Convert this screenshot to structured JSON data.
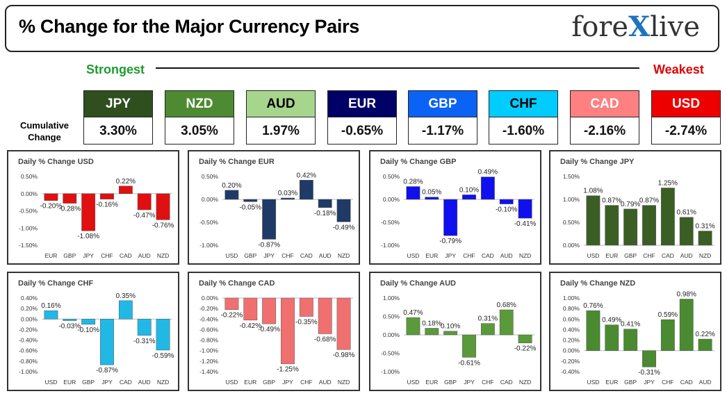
{
  "header": {
    "title": "% Change for the Major Currency Pairs",
    "logo_text_pre": "fore",
    "logo_text_x": "X",
    "logo_text_post": "live"
  },
  "scale": {
    "strongest_label": "Strongest",
    "weakest_label": "Weakest",
    "cumulative_label_line1": "Cumulative",
    "cumulative_label_line2": "Change"
  },
  "currencies": [
    {
      "code": "JPY",
      "value": "3.30%",
      "bg": "#2f4f1f",
      "fg": "#ffffff"
    },
    {
      "code": "NZD",
      "value": "3.05%",
      "bg": "#4e8a32",
      "fg": "#ffffff"
    },
    {
      "code": "AUD",
      "value": "1.97%",
      "bg": "#a6d58c",
      "fg": "#000000"
    },
    {
      "code": "EUR",
      "value": "-0.65%",
      "bg": "#000066",
      "fg": "#ffffff"
    },
    {
      "code": "GBP",
      "value": "-1.17%",
      "bg": "#0b63f5",
      "fg": "#ffffff"
    },
    {
      "code": "CHF",
      "value": "-1.60%",
      "bg": "#00ccff",
      "fg": "#000000"
    },
    {
      "code": "CAD",
      "value": "-2.16%",
      "bg": "#ff8080",
      "fg": "#ffffff"
    },
    {
      "code": "USD",
      "value": "-2.74%",
      "bg": "#ee0000",
      "fg": "#ffffff"
    }
  ],
  "chart_data": [
    {
      "type": "bar",
      "title": "Daily % Change USD",
      "color": "#e01010",
      "categories": [
        "EUR",
        "GBP",
        "JPY",
        "CHF",
        "CAD",
        "AUD",
        "NZD"
      ],
      "values": [
        -0.2,
        -0.28,
        -1.08,
        -0.16,
        0.22,
        -0.47,
        -0.76
      ],
      "labels": [
        "-0.20%",
        "-0.28%",
        "-1.08%",
        "-0.16%",
        "0.22%",
        "-0.47%",
        "-0.76%"
      ],
      "yticks": [
        "0.50%",
        "0.00%",
        "-0.50%",
        "-1.00%",
        "-1.50%"
      ],
      "ylim": [
        -1.5,
        0.5
      ]
    },
    {
      "type": "bar",
      "title": "Daily % Change EUR",
      "color": "#1f3a66",
      "categories": [
        "USD",
        "GBP",
        "JPY",
        "CHF",
        "CAD",
        "AUD",
        "NZD"
      ],
      "values": [
        0.2,
        -0.05,
        -0.87,
        0.03,
        0.42,
        -0.18,
        -0.49
      ],
      "labels": [
        "0.20%",
        "-0.05%",
        "-0.87%",
        "0.03%",
        "0.42%",
        "-0.18%",
        "-0.49%"
      ],
      "yticks": [
        "0.50%",
        "0.00%",
        "-0.50%",
        "-1.00%"
      ],
      "ylim": [
        -1.0,
        0.5
      ]
    },
    {
      "type": "bar",
      "title": "Daily % Change GBP",
      "color": "#1010ee",
      "categories": [
        "USD",
        "EUR",
        "JPY",
        "CHF",
        "CAD",
        "AUD",
        "NZD"
      ],
      "values": [
        0.28,
        0.05,
        -0.79,
        0.1,
        0.49,
        -0.1,
        -0.41
      ],
      "labels": [
        "0.28%",
        "0.05%",
        "-0.79%",
        "0.10%",
        "0.49%",
        "-0.10%",
        "-0.41%"
      ],
      "yticks": [
        "0.50%",
        "0.00%",
        "-0.50%",
        "-1.00%"
      ],
      "ylim": [
        -1.0,
        0.5
      ]
    },
    {
      "type": "bar",
      "title": "Daily % Change JPY",
      "color": "#3a5e24",
      "categories": [
        "USD",
        "EUR",
        "GBP",
        "CHF",
        "CAD",
        "AUD",
        "NZD"
      ],
      "values": [
        1.08,
        0.87,
        0.79,
        0.87,
        1.25,
        0.61,
        0.31
      ],
      "labels": [
        "1.08%",
        "0.87%",
        "0.79%",
        "0.87%",
        "1.25%",
        "0.61%",
        "0.31%"
      ],
      "yticks": [
        "1.50%",
        "1.00%",
        "0.50%",
        "0.00%"
      ],
      "ylim": [
        0,
        1.5
      ]
    },
    {
      "type": "bar",
      "title": "Daily % Change CHF",
      "color": "#22b8e6",
      "categories": [
        "USD",
        "EUR",
        "GBP",
        "JPY",
        "CAD",
        "AUD",
        "NZD"
      ],
      "values": [
        0.16,
        -0.03,
        -0.1,
        -0.87,
        0.35,
        -0.31,
        -0.59
      ],
      "labels": [
        "0.16%",
        "-0.03%",
        "-0.10%",
        "-0.87%",
        "0.35%",
        "-0.31%",
        "-0.59%"
      ],
      "yticks": [
        "0.40%",
        "0.20%",
        "0.00%",
        "-0.20%",
        "-0.40%",
        "-0.60%",
        "-0.80%",
        "-1.00%"
      ],
      "ylim": [
        -1.0,
        0.4
      ]
    },
    {
      "type": "bar",
      "title": "Daily % Change CAD",
      "color": "#f07070",
      "categories": [
        "USD",
        "EUR",
        "GBP",
        "JPY",
        "CHF",
        "AUD",
        "NZD"
      ],
      "values": [
        -0.22,
        -0.42,
        -0.49,
        -1.25,
        -0.35,
        -0.68,
        -0.98
      ],
      "labels": [
        "-0.22%",
        "-0.42%",
        "-0.49%",
        "-1.25%",
        "-0.35%",
        "-0.68%",
        "-0.98%"
      ],
      "yticks": [
        "0.00%",
        "-0.20%",
        "-0.40%",
        "-0.60%",
        "-0.80%",
        "-1.00%",
        "-1.20%",
        "-1.40%"
      ],
      "ylim": [
        -1.4,
        0
      ]
    },
    {
      "type": "bar",
      "title": "Daily % Change AUD",
      "color": "#5a9a3a",
      "categories": [
        "USD",
        "EUR",
        "GBP",
        "JPY",
        "CHF",
        "CAD",
        "NZD"
      ],
      "values": [
        0.47,
        0.18,
        0.1,
        -0.61,
        0.31,
        0.68,
        -0.22
      ],
      "labels": [
        "0.47%",
        "0.18%",
        "0.10%",
        "-0.61%",
        "0.31%",
        "0.68%",
        "-0.22%"
      ],
      "yticks": [
        "1.00%",
        "0.50%",
        "0.00%",
        "-0.50%",
        "-1.00%"
      ],
      "ylim": [
        -1.0,
        1.0
      ]
    },
    {
      "type": "bar",
      "title": "Daily % Change NZD",
      "color": "#4a8a30",
      "categories": [
        "USD",
        "EUR",
        "GBP",
        "JPY",
        "CHF",
        "CAD",
        "AUD"
      ],
      "values": [
        0.76,
        0.49,
        0.41,
        -0.31,
        0.59,
        0.98,
        0.22
      ],
      "labels": [
        "0.76%",
        "0.49%",
        "0.41%",
        "-0.31%",
        "0.59%",
        "0.98%",
        "0.22%"
      ],
      "yticks": [
        "1.00%",
        "0.80%",
        "0.60%",
        "0.40%",
        "0.20%",
        "0.00%",
        "-0.20%",
        "-0.40%"
      ],
      "ylim": [
        -0.4,
        1.0
      ]
    }
  ]
}
